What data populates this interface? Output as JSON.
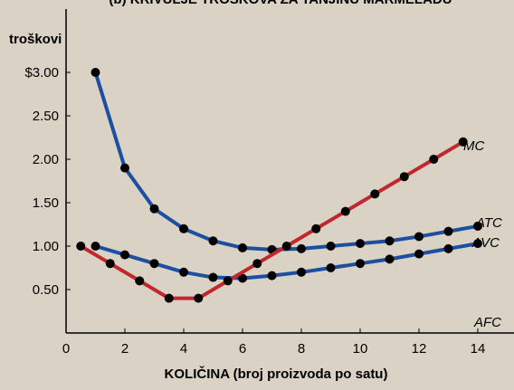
{
  "chart_data": {
    "type": "line",
    "title": "(b) KRIVULJE TROŠKOVA ZA TANJINU MARMELADU",
    "ylabel": "troškovi",
    "xlabel": "KOLIČINA (broj proizvoda po satu)",
    "xlim": [
      0,
      15.5
    ],
    "ylim": [
      0,
      3.2
    ],
    "xticks": [
      0,
      2,
      4,
      6,
      8,
      10,
      12,
      14
    ],
    "xtick_labels": [
      "0",
      "2",
      "4",
      "6",
      "8",
      "10",
      "12",
      "14"
    ],
    "yticks": [
      0.5,
      1.0,
      1.5,
      2.0,
      2.5,
      3.0
    ],
    "ytick_labels": [
      "0.50",
      "1.00",
      "1.50",
      "2.00",
      "2.50",
      "$3.00"
    ],
    "grid": false,
    "series": [
      {
        "name": "MC",
        "color": "#c1272d",
        "x": [
          0.5,
          1.5,
          2.5,
          3.5,
          4.5,
          5.5,
          6.5,
          7.5,
          8.5,
          9.5,
          10.5,
          11.5,
          12.5,
          13.5
        ],
        "y": [
          1.0,
          0.8,
          0.6,
          0.4,
          0.4,
          0.6,
          0.8,
          1.0,
          1.2,
          1.4,
          1.6,
          1.8,
          2.0,
          2.2
        ]
      },
      {
        "name": "ATC",
        "color": "#1c4fa0",
        "x": [
          1,
          2,
          3,
          4,
          5,
          6,
          7,
          8,
          9,
          10,
          11,
          12,
          13,
          14
        ],
        "y": [
          3.0,
          1.9,
          1.43,
          1.2,
          1.06,
          0.98,
          0.96,
          0.97,
          1.0,
          1.03,
          1.06,
          1.11,
          1.17,
          1.23
        ]
      },
      {
        "name": "AVC",
        "color": "#1c4fa0",
        "x": [
          1,
          2,
          3,
          4,
          5,
          6,
          7,
          8,
          9,
          10,
          11,
          12,
          13,
          14
        ],
        "y": [
          1.0,
          0.9,
          0.8,
          0.7,
          0.64,
          0.63,
          0.66,
          0.7,
          0.75,
          0.8,
          0.85,
          0.91,
          0.97,
          1.03
        ]
      },
      {
        "name": "AFC",
        "color": "#000000",
        "x": [],
        "y": []
      }
    ]
  }
}
